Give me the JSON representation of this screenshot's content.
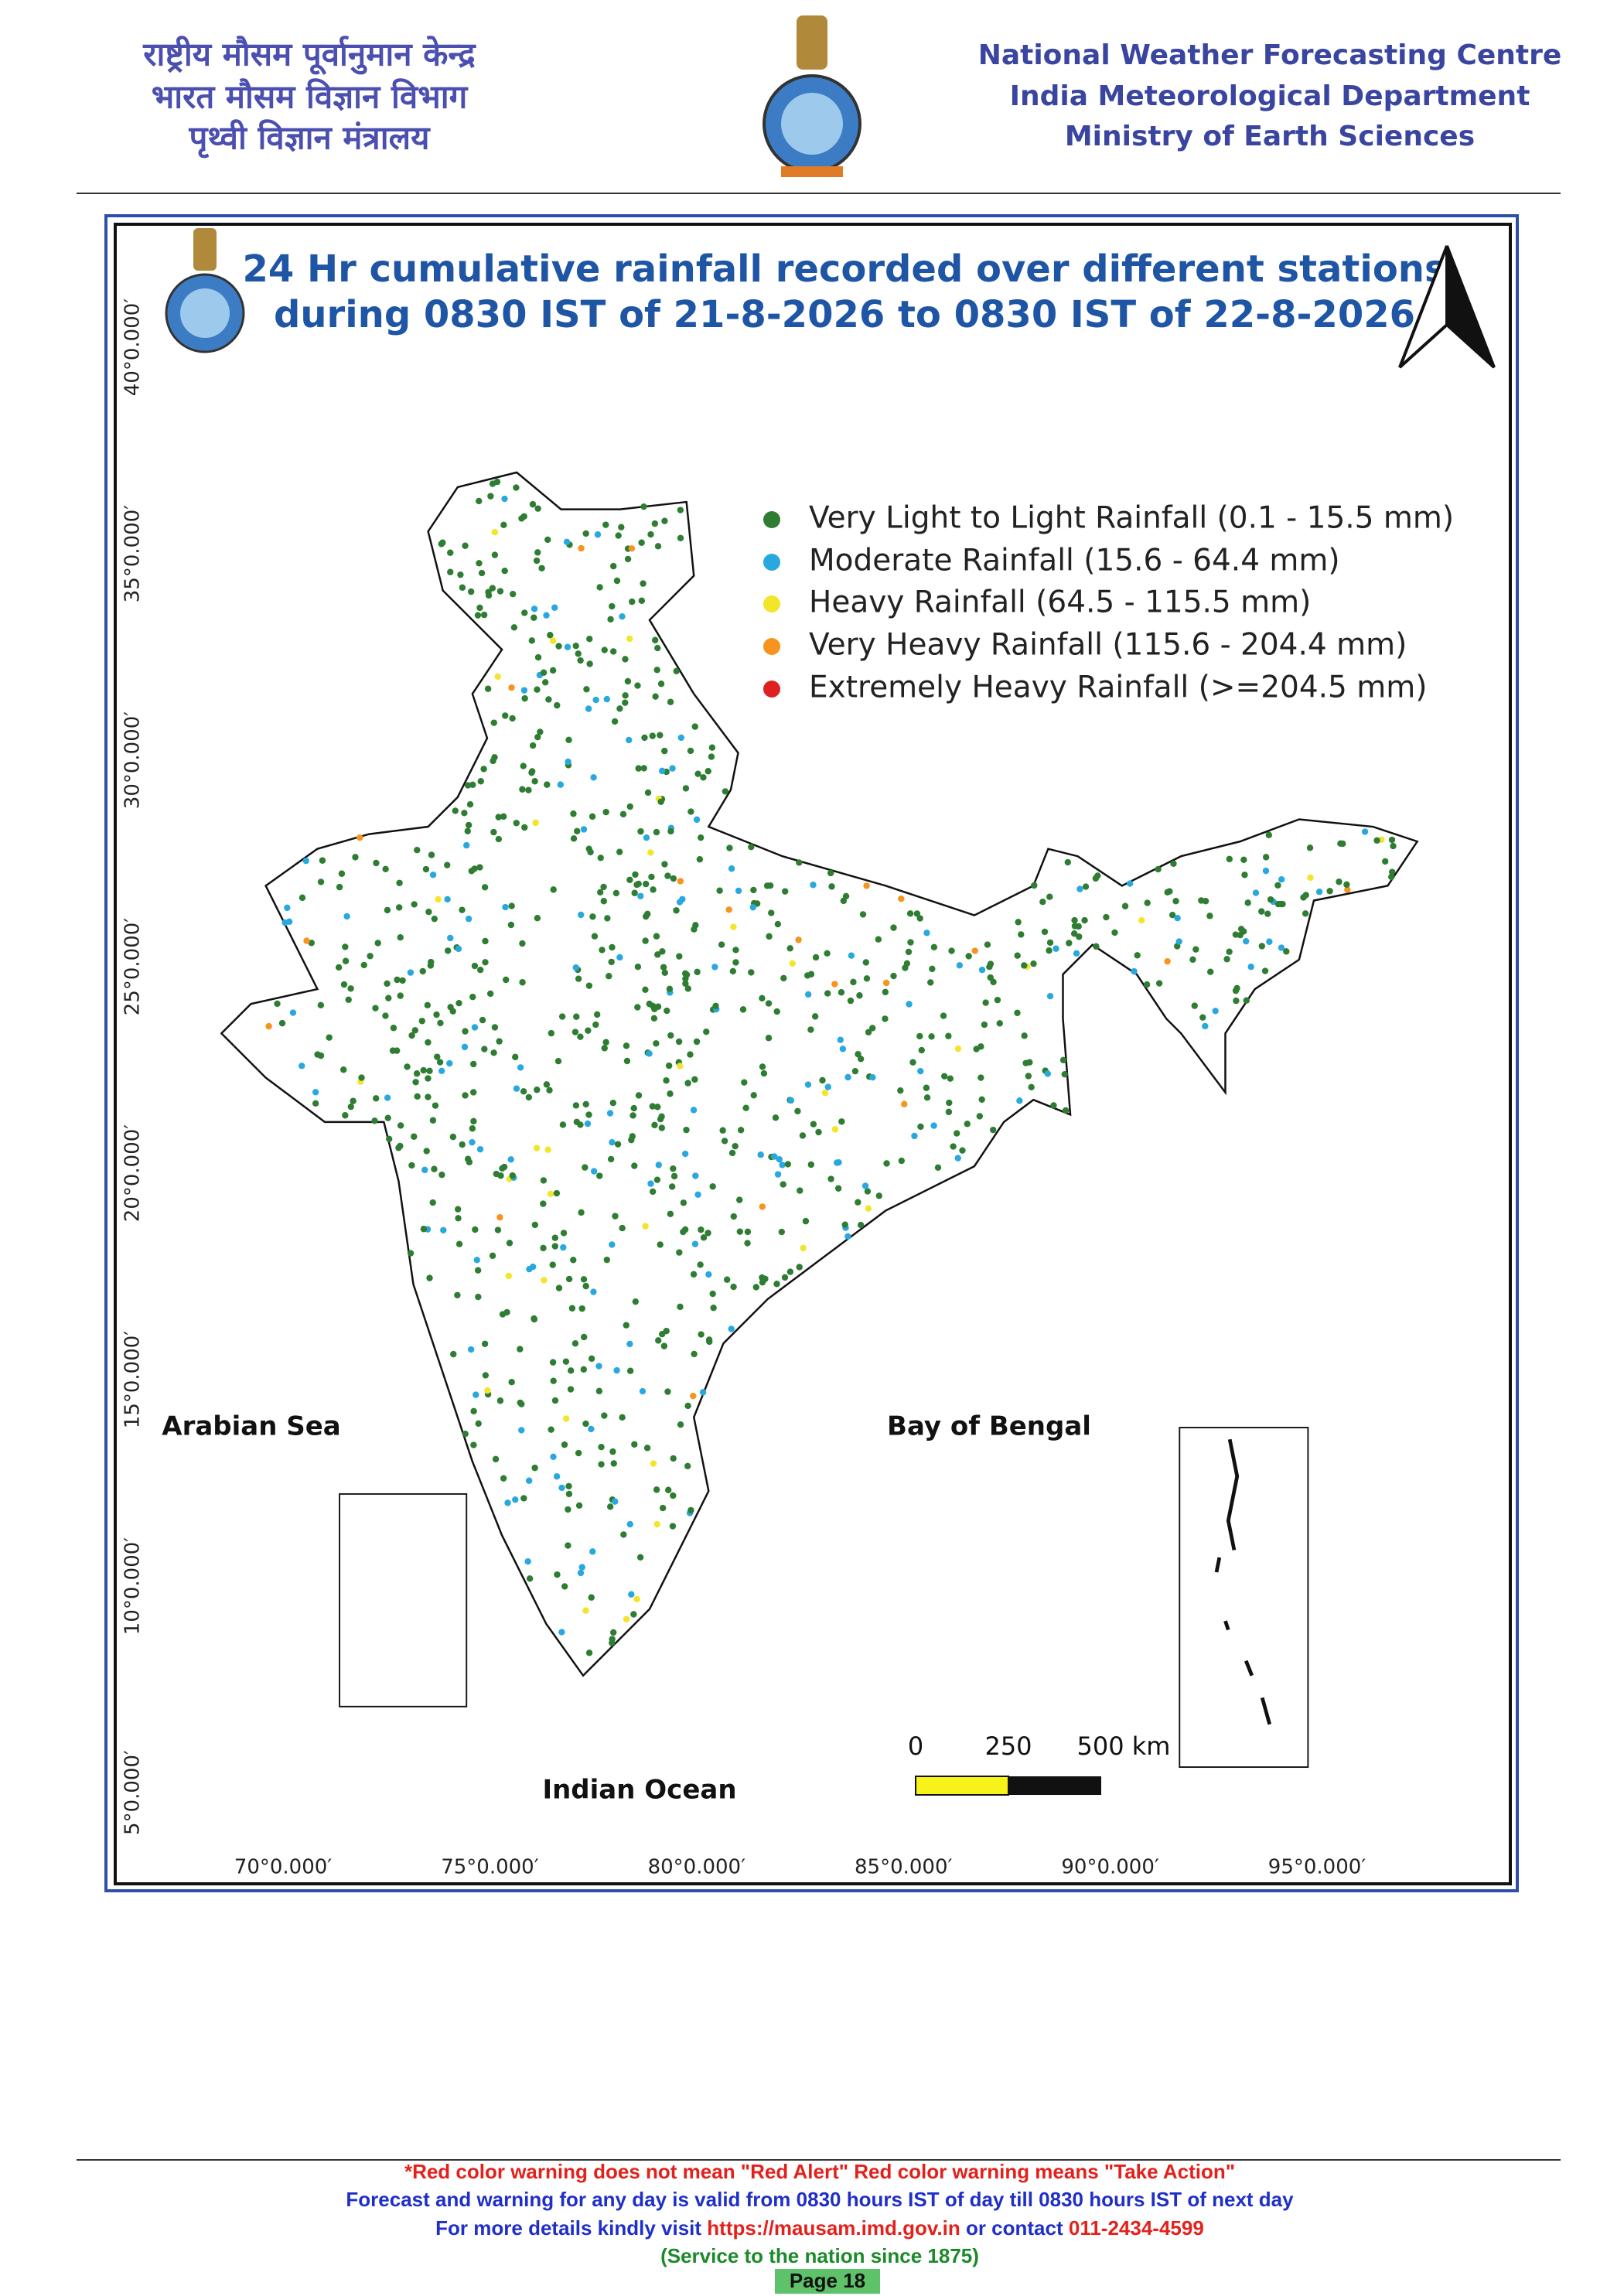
{
  "header": {
    "hindi": [
      "राष्ट्रीय मौसम पूर्वानुमान केन्द्र",
      "भारत मौसम विज्ञान विभाग",
      "पृथ्वी विज्ञान मंत्रालय"
    ],
    "english": [
      "National Weather Forecasting Centre",
      "India Meteorological Department",
      "Ministry of Earth Sciences"
    ]
  },
  "map": {
    "title": [
      "24 Hr cumulative rainfall recorded over different stations",
      "during 0830 IST of 21-8-2026 to 0830 IST of 22-8-2026"
    ],
    "legend": [
      {
        "label": "Very Light to Light Rainfall (0.1 - 15.5 mm)",
        "color": "#2e7d32"
      },
      {
        "label": "Moderate Rainfall (15.6 - 64.4 mm)",
        "color": "#29a8e0"
      },
      {
        "label": "Heavy Rainfall (64.5 - 115.5 mm)",
        "color": "#f2e52a"
      },
      {
        "label": "Very Heavy Rainfall (115.6 - 204.4 mm)",
        "color": "#f7941d"
      },
      {
        "label": "Extremely Heavy Rainfall (>=204.5 mm)",
        "color": "#e02020"
      }
    ],
    "lat_labels": [
      "40°0.000′",
      "35°0.000′",
      "30°0.000′",
      "25°0.000′",
      "20°0.000′",
      "15°0.000′",
      "10°0.000′",
      "5°0.000′"
    ],
    "lon_labels": [
      "70°0.000′",
      "75°0.000′",
      "80°0.000′",
      "85°0.000′",
      "90°0.000′",
      "95°0.000′"
    ],
    "seas": {
      "arabian_sea": "Arabian Sea",
      "bay_of_bengal": "Bay of Bengal",
      "indian_ocean": "Indian Ocean"
    },
    "scale_bar": [
      "0",
      "250",
      "500 km"
    ]
  },
  "footer": {
    "line1": "*Red color warning does not mean \"Red Alert\" Red color warning means \"Take Action\"",
    "line2": "Forecast and warning for any day is valid from 0830 hours IST of day till 0830 hours IST of next day",
    "line3": [
      "For more details kindly visit ",
      "https://mausam.imd.gov.in",
      " or contact ",
      "011-2434-4599"
    ],
    "line4": "(Service to the nation since 1875)",
    "page": "Page 18"
  }
}
